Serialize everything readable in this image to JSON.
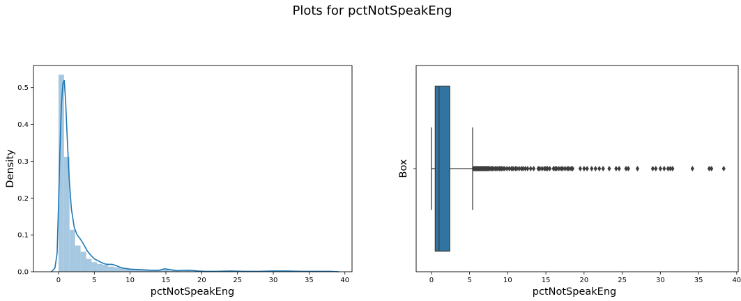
{
  "figure": {
    "suptitle": "Plots for pctNotSpeakEng"
  },
  "colors": {
    "hist_fill": "#a6c8e0",
    "kde_line": "#1f77b4",
    "box_fill": "#3274a1",
    "box_edge": "#3d3d3d"
  },
  "chart_data": [
    {
      "type": "bar",
      "kind": "histogram_with_kde",
      "xlabel": "pctNotSpeakEng",
      "ylabel": "Density",
      "xlim": [
        -3.5,
        41
      ],
      "ylim": [
        0,
        0.56
      ],
      "xticks": [
        0,
        5,
        10,
        15,
        20,
        25,
        30,
        35,
        40
      ],
      "yticks": [
        0.0,
        0.1,
        0.2,
        0.3,
        0.4,
        0.5
      ],
      "bin_width": 0.77,
      "bins": [
        {
          "x0": 0.0,
          "density": 0.535
        },
        {
          "x0": 0.77,
          "density": 0.312
        },
        {
          "x0": 1.54,
          "density": 0.114
        },
        {
          "x0": 2.31,
          "density": 0.071
        },
        {
          "x0": 3.08,
          "density": 0.054
        },
        {
          "x0": 3.85,
          "density": 0.035
        },
        {
          "x0": 4.62,
          "density": 0.026
        },
        {
          "x0": 5.39,
          "density": 0.021
        },
        {
          "x0": 6.16,
          "density": 0.019
        },
        {
          "x0": 6.93,
          "density": 0.014
        },
        {
          "x0": 7.7,
          "density": 0.012
        },
        {
          "x0": 8.47,
          "density": 0.01
        },
        {
          "x0": 9.24,
          "density": 0.008
        },
        {
          "x0": 10.01,
          "density": 0.006
        },
        {
          "x0": 10.78,
          "density": 0.005
        },
        {
          "x0": 11.55,
          "density": 0.004
        },
        {
          "x0": 12.32,
          "density": 0.004
        },
        {
          "x0": 13.09,
          "density": 0.003
        },
        {
          "x0": 13.86,
          "density": 0.004
        },
        {
          "x0": 14.63,
          "density": 0.006
        },
        {
          "x0": 15.4,
          "density": 0.003
        },
        {
          "x0": 16.17,
          "density": 0.003
        },
        {
          "x0": 16.94,
          "density": 0.002
        },
        {
          "x0": 17.71,
          "density": 0.003
        },
        {
          "x0": 18.48,
          "density": 0.002
        },
        {
          "x0": 19.25,
          "density": 0.001
        },
        {
          "x0": 20.02,
          "density": 0.001
        },
        {
          "x0": 20.79,
          "density": 0.001
        },
        {
          "x0": 21.56,
          "density": 0.001
        },
        {
          "x0": 22.33,
          "density": 0.001
        },
        {
          "x0": 23.1,
          "density": 0.001
        },
        {
          "x0": 23.87,
          "density": 0.001
        },
        {
          "x0": 24.64,
          "density": 0.001
        },
        {
          "x0": 25.41,
          "density": 0.001
        },
        {
          "x0": 29.26,
          "density": 0.001
        },
        {
          "x0": 30.03,
          "density": 0.001
        },
        {
          "x0": 31.57,
          "density": 0.001
        },
        {
          "x0": 34.65,
          "density": 0.001
        },
        {
          "x0": 36.19,
          "density": 0.001
        },
        {
          "x0": 37.73,
          "density": 0.001
        }
      ],
      "kde": {
        "x": [
          -1.0,
          -0.5,
          -0.2,
          0.0,
          0.2,
          0.4,
          0.6,
          0.8,
          1.0,
          1.2,
          1.5,
          1.8,
          2.2,
          2.6,
          3.0,
          3.5,
          4.0,
          4.5,
          5.0,
          5.5,
          6.0,
          6.5,
          7.0,
          7.5,
          8.0,
          8.5,
          9.0,
          10.0,
          11.0,
          12.0,
          13.0,
          14.0,
          14.8,
          15.5,
          16.5,
          17.5,
          18.5,
          19.5,
          20.5,
          22.0,
          24.0,
          26.0,
          28.0,
          30.0,
          32.0,
          34.0,
          36.0,
          38.0,
          39.2
        ],
        "y": [
          0.0,
          0.01,
          0.05,
          0.18,
          0.33,
          0.45,
          0.51,
          0.52,
          0.46,
          0.37,
          0.25,
          0.17,
          0.12,
          0.1,
          0.09,
          0.075,
          0.057,
          0.045,
          0.035,
          0.03,
          0.025,
          0.021,
          0.02,
          0.02,
          0.017,
          0.013,
          0.01,
          0.007,
          0.006,
          0.005,
          0.004,
          0.004,
          0.008,
          0.006,
          0.003,
          0.004,
          0.004,
          0.002,
          0.001,
          0.001,
          0.002,
          0.001,
          0.001,
          0.002,
          0.002,
          0.001,
          0.001,
          0.001,
          0.0
        ]
      }
    },
    {
      "type": "box",
      "xlabel": "pctNotSpeakEng",
      "ylabel": "Box",
      "xlim": [
        -2,
        40.2
      ],
      "xticks": [
        0,
        5,
        10,
        15,
        20,
        25,
        30,
        35,
        40
      ],
      "stats": {
        "whisker_low": 0.0,
        "q1": 0.5,
        "median": 1.0,
        "q3": 2.4,
        "whisker_high": 5.4
      },
      "outliers": [
        5.5,
        5.6,
        5.7,
        5.8,
        5.9,
        6.0,
        6.1,
        6.2,
        6.3,
        6.4,
        6.5,
        6.6,
        6.7,
        6.8,
        6.9,
        7.0,
        7.1,
        7.2,
        7.3,
        7.4,
        7.5,
        7.6,
        7.8,
        7.9,
        8.0,
        8.2,
        8.4,
        8.5,
        8.7,
        8.9,
        9.0,
        9.2,
        9.4,
        9.6,
        9.9,
        10.2,
        10.5,
        10.7,
        11.0,
        11.2,
        11.5,
        11.8,
        12.0,
        12.3,
        12.6,
        13.0,
        13.4,
        14.0,
        14.2,
        14.5,
        14.8,
        15.0,
        15.2,
        15.5,
        16.0,
        16.2,
        16.4,
        16.7,
        17.0,
        17.2,
        17.5,
        17.8,
        18.0,
        18.3,
        18.5,
        19.5,
        20.0,
        20.4,
        21.0,
        21.5,
        22.0,
        22.5,
        23.3,
        24.2,
        24.6,
        25.5,
        25.8,
        27.0,
        29.0,
        29.4,
        30.0,
        30.5,
        31.0,
        31.3,
        31.6,
        34.2,
        36.4,
        36.7,
        38.3
      ]
    }
  ]
}
